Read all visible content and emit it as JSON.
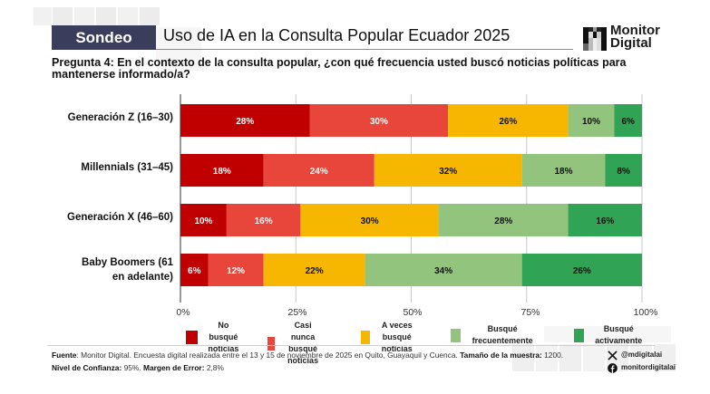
{
  "header": {
    "badge": "Sondeo",
    "title": "Uso de IA en la Consulta Popular Ecuador 2025",
    "logo_line1": "Monitor",
    "logo_line2": "Digital"
  },
  "question": "Pregunta 4: En el contexto de la consulta popular, ¿con qué frecuencia usted buscó noticias políticas para mantenerse informado/a?",
  "colors": {
    "badge_bg": "#3b3d5c",
    "no_busque": "#c00000",
    "casi_nunca": "#e8463a",
    "a_veces": "#f7b600",
    "frecuentemente": "#93c47d",
    "activamente": "#31a354"
  },
  "chart_data": {
    "type": "bar",
    "orientation": "horizontal",
    "stacked": true,
    "title": "Pregunta 4: En el contexto de la consulta popular, ¿con qué frecuencia usted buscó noticias políticas para mantenerse informado/a?",
    "xlabel": "",
    "ylabel": "",
    "xlim": [
      0,
      100
    ],
    "grid": true,
    "legend_position": "bottom",
    "categories": [
      "Generación Z (16–30)",
      "Millennials (31–45)",
      "Generación X (46–60)",
      "Baby Boomers (61 en adelante)"
    ],
    "x_ticks": [
      "0%",
      "25%",
      "50%",
      "75%",
      "100%"
    ],
    "series": [
      {
        "name": "No busqué noticias",
        "color": "#c00000",
        "label_color": "#ffffff",
        "values": [
          28,
          18,
          10,
          6
        ]
      },
      {
        "name": "Casi nunca busqué noticias",
        "color": "#e8463a",
        "label_color": "#ffffff",
        "values": [
          30,
          24,
          16,
          12
        ]
      },
      {
        "name": "A veces busqué noticias",
        "color": "#f7b600",
        "label_color": "#111111",
        "values": [
          26,
          32,
          30,
          22
        ]
      },
      {
        "name": "Busqué frecuentemente",
        "color": "#93c47d",
        "label_color": "#111111",
        "values": [
          10,
          18,
          28,
          34
        ]
      },
      {
        "name": "Busqué activamente",
        "color": "#31a354",
        "label_color": "#111111",
        "values": [
          6,
          8,
          16,
          26
        ]
      }
    ]
  },
  "legend": [
    {
      "label_line1": "No busqué",
      "label_line2": "noticias"
    },
    {
      "label_line1": "Casi nunca busqué",
      "label_line2": "noticias"
    },
    {
      "label_line1": "A veces busqué",
      "label_line2": "noticias"
    },
    {
      "label_line1": "Busqué frecuentemente",
      "label_line2": ""
    },
    {
      "label_line1": "Busqué activamente",
      "label_line2": ""
    }
  ],
  "footer": {
    "source_label": "Fuente",
    "source_text": ": Monitor Digital. Encuesta digital realizada entre el 13 y 15 de noviembre de 2025 en Quito, Guayaquil y Cuenca.",
    "sample_label": "Tamaño de la muestra:",
    "sample_value": "1200.",
    "confidence_label": "Nivel de Confianza:",
    "confidence_value": "95%.",
    "error_label": "Margen de Error:",
    "error_value": "2,8%"
  },
  "social": {
    "x_handle": "@mdigitalai",
    "facebook_handle": "monitordigitalai"
  }
}
